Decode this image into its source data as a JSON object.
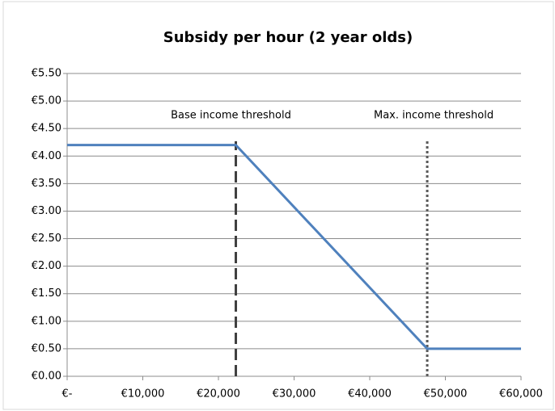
{
  "chart_data": {
    "type": "line",
    "title": "Subsidy per hour (2 year olds)",
    "x": [
      0,
      22300,
      47600,
      60000
    ],
    "series": [
      {
        "name": "Subsidy per hour",
        "color": "#4f81bd",
        "values": [
          4.2,
          4.2,
          0.5,
          0.5
        ]
      }
    ],
    "thresholds": [
      {
        "label": "Base income threshold",
        "x": 22300,
        "top": 4.27,
        "style": "dashed",
        "color": "#404040"
      },
      {
        "label": "Max. income threshold",
        "x": 47600,
        "top": 4.27,
        "style": "dotted",
        "color": "#595959"
      }
    ],
    "xlim": [
      0,
      60000
    ],
    "xticks": [
      {
        "value": 0,
        "label": "€-"
      },
      {
        "value": 10000,
        "label": "€10,000"
      },
      {
        "value": 20000,
        "label": "€20,000"
      },
      {
        "value": 30000,
        "label": "€30,000"
      },
      {
        "value": 40000,
        "label": "€40,000"
      },
      {
        "value": 50000,
        "label": "€50,000"
      },
      {
        "value": 60000,
        "label": "€60,000"
      }
    ],
    "ylim": [
      0,
      5.5
    ],
    "yticks": [
      {
        "value": 0,
        "label": "€0.00"
      },
      {
        "value": 0.5,
        "label": "€0.50"
      },
      {
        "value": 1,
        "label": "€1.00"
      },
      {
        "value": 1.5,
        "label": "€1.50"
      },
      {
        "value": 2,
        "label": "€2.00"
      },
      {
        "value": 2.5,
        "label": "€2.50"
      },
      {
        "value": 3,
        "label": "€3.00"
      },
      {
        "value": 3.5,
        "label": "€3.50"
      },
      {
        "value": 4,
        "label": "€4.00"
      },
      {
        "value": 4.5,
        "label": "€4.50"
      },
      {
        "value": 5,
        "label": "€5.00"
      },
      {
        "value": 5.5,
        "label": "€5.50"
      }
    ],
    "grid": true
  }
}
